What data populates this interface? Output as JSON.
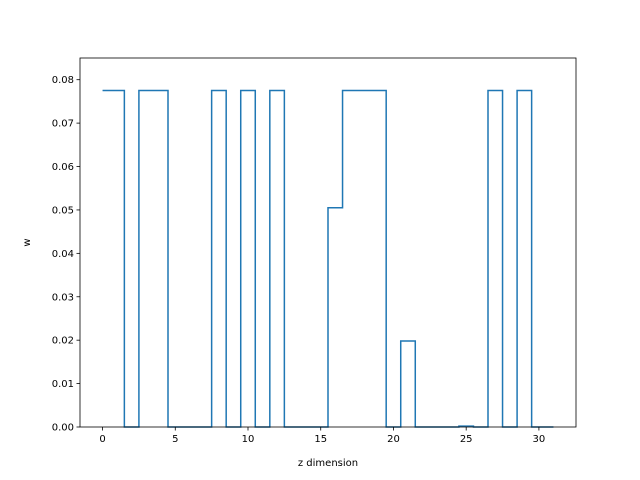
{
  "chart_data": {
    "type": "line",
    "style": "step",
    "title": "",
    "xlabel": "z dimension",
    "ylabel": "w",
    "xlim": [
      -1.55,
      32.55
    ],
    "ylim": [
      0,
      0.085
    ],
    "xticks": [
      0,
      5,
      10,
      15,
      20,
      25,
      30
    ],
    "yticks": [
      0.0,
      0.01,
      0.02,
      0.03,
      0.04,
      0.05,
      0.06,
      0.07,
      0.08
    ],
    "ytick_labels": [
      "0.00",
      "0.01",
      "0.02",
      "0.03",
      "0.04",
      "0.05",
      "0.06",
      "0.07",
      "0.08"
    ],
    "grid": false,
    "line_color": "#1f77b4",
    "x": [
      0,
      1,
      2,
      3,
      4,
      5,
      6,
      7,
      8,
      9,
      10,
      11,
      12,
      13,
      14,
      15,
      16,
      17,
      18,
      19,
      20,
      21,
      22,
      23,
      24,
      25,
      26,
      27,
      28,
      29,
      30,
      31
    ],
    "values": [
      0.0775,
      0.0775,
      0,
      0.0775,
      0.0775,
      0,
      0,
      0,
      0.0775,
      0,
      0.0775,
      0,
      0.0775,
      0,
      0,
      0,
      0.0505,
      0.0775,
      0.0775,
      0.0775,
      0,
      0.0198,
      0,
      0,
      0,
      0.0002,
      0,
      0.0775,
      0,
      0.0775,
      0,
      0
    ]
  }
}
